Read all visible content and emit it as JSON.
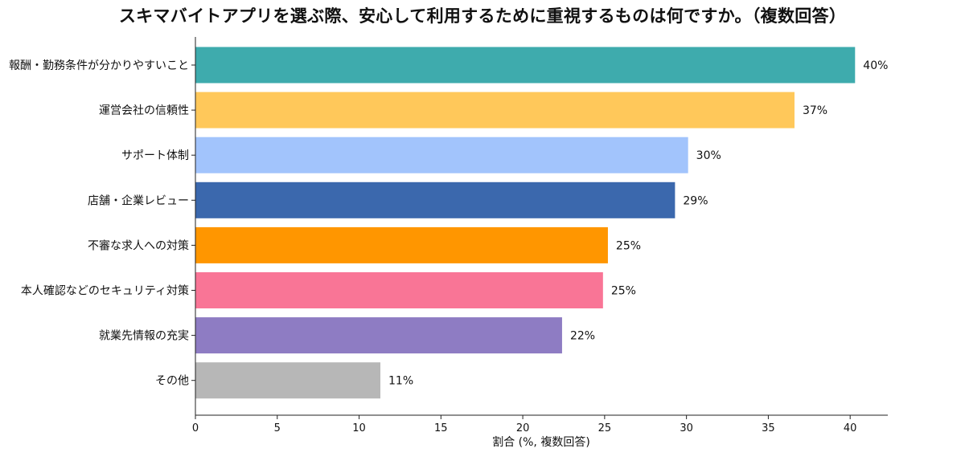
{
  "chart_data": {
    "type": "bar",
    "orientation": "horizontal",
    "title": "スキマバイトアプリを選ぶ際、安心して利用するために重視するものは何ですか。（複数回答）",
    "xlabel": "割合 (%, 複数回答)",
    "ylabel": "",
    "xlim": [
      0,
      42.3
    ],
    "xticks": [
      0,
      5,
      10,
      15,
      20,
      25,
      30,
      35,
      40
    ],
    "grid": false,
    "legend": "none",
    "categories": [
      "報酬・勤務条件が分かりやすいこと",
      "運営会社の信頼性",
      "サポート体制",
      "店舗・企業レビュー",
      "不審な求人への対策",
      "本人確認などのセキュリティ対策",
      "就業先情報の充実",
      "その他"
    ],
    "values": [
      40.3,
      36.6,
      30.1,
      29.3,
      25.2,
      24.9,
      22.4,
      11.3
    ],
    "value_labels": [
      "40%",
      "37%",
      "30%",
      "29%",
      "25%",
      "25%",
      "22%",
      "11%"
    ],
    "colors": [
      "#3eabad",
      "#ffc85a",
      "#a2c4fc",
      "#3b68ad",
      "#ff9600",
      "#f97596",
      "#8e7cc3",
      "#b7b7b7"
    ]
  }
}
